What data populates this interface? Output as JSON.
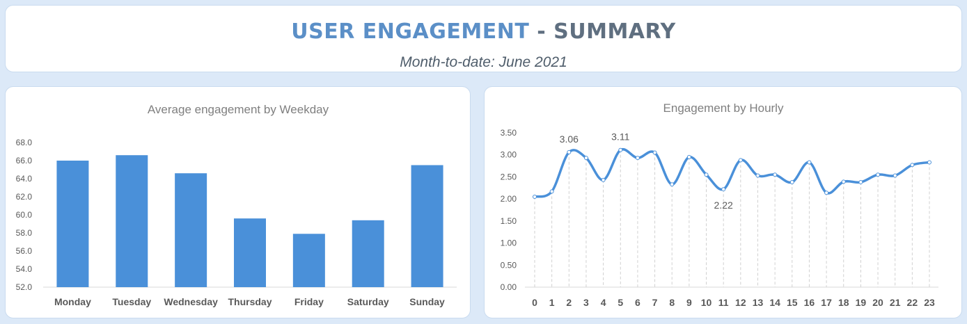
{
  "header": {
    "title_main": "USER ENGAGEMENT",
    "title_rest": " - SUMMARY",
    "subtitle": "Month-to-date: June 2021"
  },
  "colors": {
    "accent": "#4a90d9",
    "title_blue": "#5b8fc7",
    "title_gray": "#5f6f80",
    "background": "#dce9f8"
  },
  "chart_data": [
    {
      "type": "bar",
      "title": "Average engagement by Weekday",
      "categories": [
        "Monday",
        "Tuesday",
        "Wednesday",
        "Thursday",
        "Friday",
        "Saturday",
        "Sunday"
      ],
      "values": [
        66.0,
        66.6,
        64.6,
        59.6,
        57.9,
        59.4,
        65.5
      ],
      "ylim": [
        52,
        68
      ],
      "yticks": [
        "68.0",
        "66.0",
        "64.0",
        "62.0",
        "60.0",
        "58.0",
        "56.0",
        "54.0",
        "52.0"
      ],
      "grid": false
    },
    {
      "type": "line",
      "title": "Engagement by Hourly",
      "x": [
        "0",
        "1",
        "2",
        "3",
        "4",
        "5",
        "6",
        "7",
        "8",
        "9",
        "10",
        "11",
        "12",
        "13",
        "14",
        "15",
        "16",
        "17",
        "18",
        "19",
        "20",
        "21",
        "22",
        "23"
      ],
      "values": [
        2.05,
        2.17,
        3.06,
        2.93,
        2.43,
        3.11,
        2.93,
        3.05,
        2.33,
        2.95,
        2.55,
        2.22,
        2.88,
        2.53,
        2.55,
        2.38,
        2.83,
        2.14,
        2.39,
        2.38,
        2.55,
        2.53,
        2.77,
        2.83
      ],
      "data_labels": [
        {
          "index": 2,
          "text": "3.06"
        },
        {
          "index": 5,
          "text": "3.11"
        },
        {
          "index": 11,
          "text": "2.22"
        }
      ],
      "ylim": [
        0,
        3.5
      ],
      "yticks": [
        "3.50",
        "3.00",
        "2.50",
        "2.00",
        "1.50",
        "1.00",
        "0.50",
        "0.00"
      ],
      "grid": false
    }
  ]
}
